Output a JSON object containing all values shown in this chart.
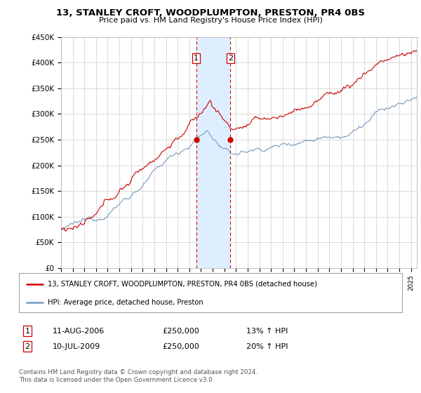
{
  "title": "13, STANLEY CROFT, WOODPLUMPTON, PRESTON, PR4 0BS",
  "subtitle": "Price paid vs. HM Land Registry's House Price Index (HPI)",
  "ylabel_ticks": [
    "£0",
    "£50K",
    "£100K",
    "£150K",
    "£200K",
    "£250K",
    "£300K",
    "£350K",
    "£400K",
    "£450K"
  ],
  "ylim": [
    0,
    450000
  ],
  "xlim_start": 1995.0,
  "xlim_end": 2025.5,
  "sale1_date": 2006.6,
  "sale1_price": 250000,
  "sale1_label": "1",
  "sale2_date": 2009.52,
  "sale2_price": 250000,
  "sale2_label": "2",
  "highlight_color": "#ddeeff",
  "vline_color": "#dd0000",
  "red_line_color": "#cc0000",
  "blue_line_color": "#7799bb",
  "legend_line1": "13, STANLEY CROFT, WOODPLUMPTON, PRESTON, PR4 0BS (detached house)",
  "legend_line2": "HPI: Average price, detached house, Preston",
  "table_row1": [
    "1",
    "11-AUG-2006",
    "£250,000",
    "13% ↑ HPI"
  ],
  "table_row2": [
    "2",
    "10-JUL-2009",
    "£250,000",
    "20% ↑ HPI"
  ],
  "footnote": "Contains HM Land Registry data © Crown copyright and database right 2024.\nThis data is licensed under the Open Government Licence v3.0.",
  "background_color": "#ffffff",
  "grid_color": "#cccccc"
}
